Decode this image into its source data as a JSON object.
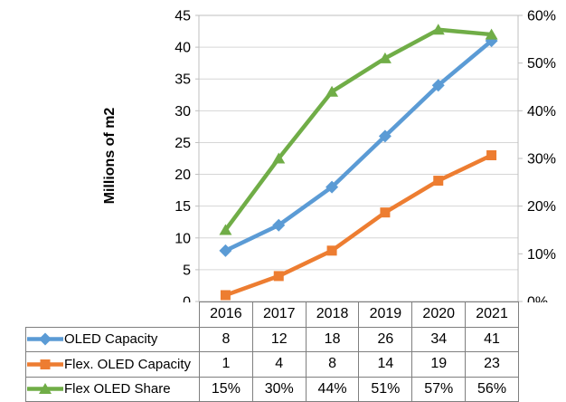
{
  "chart_data": {
    "type": "line",
    "title": "",
    "ylabel_left": "Millions of m2",
    "categories": [
      "2016",
      "2017",
      "2018",
      "2019",
      "2020",
      "2021"
    ],
    "series": [
      {
        "name": "OLED Capacity",
        "color": "#5B9BD5",
        "marker": "diamond",
        "axis": "left",
        "values": [
          8,
          12,
          18,
          26,
          34,
          41
        ],
        "display": [
          "8",
          "12",
          "18",
          "26",
          "34",
          "41"
        ]
      },
      {
        "name": "Flex. OLED Capacity",
        "color": "#ED7D31",
        "marker": "square",
        "axis": "left",
        "values": [
          1,
          4,
          8,
          14,
          19,
          23
        ],
        "display": [
          "1",
          "4",
          "8",
          "14",
          "19",
          "23"
        ]
      },
      {
        "name": "Flex OLED Share",
        "color": "#70AD47",
        "marker": "triangle",
        "axis": "right",
        "values": [
          15,
          30,
          44,
          51,
          57,
          56
        ],
        "display": [
          "15%",
          "30%",
          "44%",
          "51%",
          "57%",
          "56%"
        ]
      }
    ],
    "left_axis": {
      "min": 0,
      "max": 45,
      "ticks": [
        "0",
        "5",
        "10",
        "15",
        "20",
        "25",
        "30",
        "35",
        "40",
        "45"
      ]
    },
    "right_axis": {
      "min": 0,
      "max": 60,
      "ticks": [
        "0%",
        "10%",
        "20%",
        "30%",
        "40%",
        "50%",
        "60%"
      ]
    },
    "grid": "horizontal",
    "legend_position": "table-left",
    "colors": {
      "grid": "#D6D6D6",
      "axis": "#BFBFBF",
      "table_border": "#7F7F7F",
      "text": "#000000"
    }
  }
}
